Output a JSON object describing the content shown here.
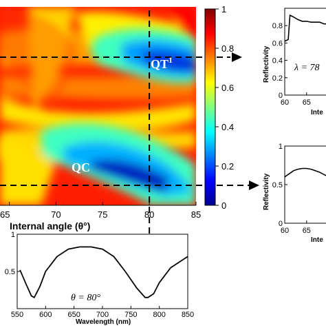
{
  "chart_data": [
    {
      "id": "main-map",
      "type": "heatmap",
      "xlabel": "Internal angle (θ°)",
      "x_ticks": [
        "65",
        "70",
        "75",
        "80",
        "85"
      ],
      "xlim": [
        64,
        85
      ],
      "colorbar": {
        "range": [
          0,
          1
        ],
        "ticks": [
          "0",
          "0.2",
          "0.4",
          "0.6",
          "0.8",
          "1"
        ],
        "colormap": "jet",
        "colors": [
          "#00008f",
          "#0000ff",
          "#0080ff",
          "#00ffff",
          "#80ff80",
          "#ffff00",
          "#ff8000",
          "#ff0000",
          "#800000"
        ]
      },
      "annotations": [
        {
          "text": "QT",
          "superscript": "1"
        },
        {
          "text": "QC"
        }
      ],
      "guide_lines": {
        "vertical_x": 80
      }
    },
    {
      "id": "bottom-spectrum",
      "type": "line",
      "xlabel": "Wavelength (nm)",
      "x_ticks": [
        "550",
        "600",
        "650",
        "700",
        "750",
        "800",
        "850"
      ],
      "y_ticks": [
        "0.5",
        "1"
      ],
      "xlim": [
        550,
        850
      ],
      "ylim": [
        0,
        1
      ],
      "annotation": "θ = 80°",
      "series": [
        {
          "x": [
            555,
            565,
            575,
            580,
            590,
            600,
            620,
            640,
            660,
            680,
            700,
            720,
            740,
            760,
            775,
            780,
            790,
            800,
            820,
            840,
            850
          ],
          "y": [
            0.52,
            0.34,
            0.17,
            0.15,
            0.3,
            0.5,
            0.7,
            0.8,
            0.83,
            0.83,
            0.8,
            0.7,
            0.5,
            0.28,
            0.15,
            0.15,
            0.2,
            0.35,
            0.55,
            0.65,
            0.7
          ]
        }
      ]
    },
    {
      "id": "right-top-spectrum",
      "type": "line",
      "ylabel": "Reflectivity",
      "xlabel": "Inte",
      "x_ticks": [
        "60",
        "65"
      ],
      "y_ticks": [
        "0",
        "0.2",
        "0.4",
        "0.6",
        "0.8"
      ],
      "annotation": "λ = 78",
      "xlim": [
        60,
        71
      ],
      "ylim": [
        0,
        1
      ],
      "series": [
        {
          "x": [
            60,
            60.8,
            61.2,
            62,
            63,
            64,
            65,
            66,
            67,
            68,
            69,
            70,
            71
          ],
          "y": [
            0.62,
            0.64,
            0.92,
            0.9,
            0.87,
            0.85,
            0.85,
            0.84,
            0.84,
            0.84,
            0.82,
            0.82,
            0.82
          ]
        }
      ]
    },
    {
      "id": "right-bottom-spectrum",
      "type": "line",
      "ylabel": "Reflectivity",
      "xlabel": "Inte",
      "x_ticks": [
        "60",
        "65"
      ],
      "y_ticks": [
        "0",
        "0.5",
        "1"
      ],
      "xlim": [
        60,
        71
      ],
      "ylim": [
        0,
        1
      ],
      "series": [
        {
          "x": [
            60,
            61,
            62,
            63,
            64,
            65,
            66,
            67,
            68,
            69,
            70,
            71
          ],
          "y": [
            0.6,
            0.64,
            0.68,
            0.7,
            0.71,
            0.71,
            0.7,
            0.68,
            0.66,
            0.63,
            0.6,
            0.56
          ]
        }
      ]
    }
  ]
}
